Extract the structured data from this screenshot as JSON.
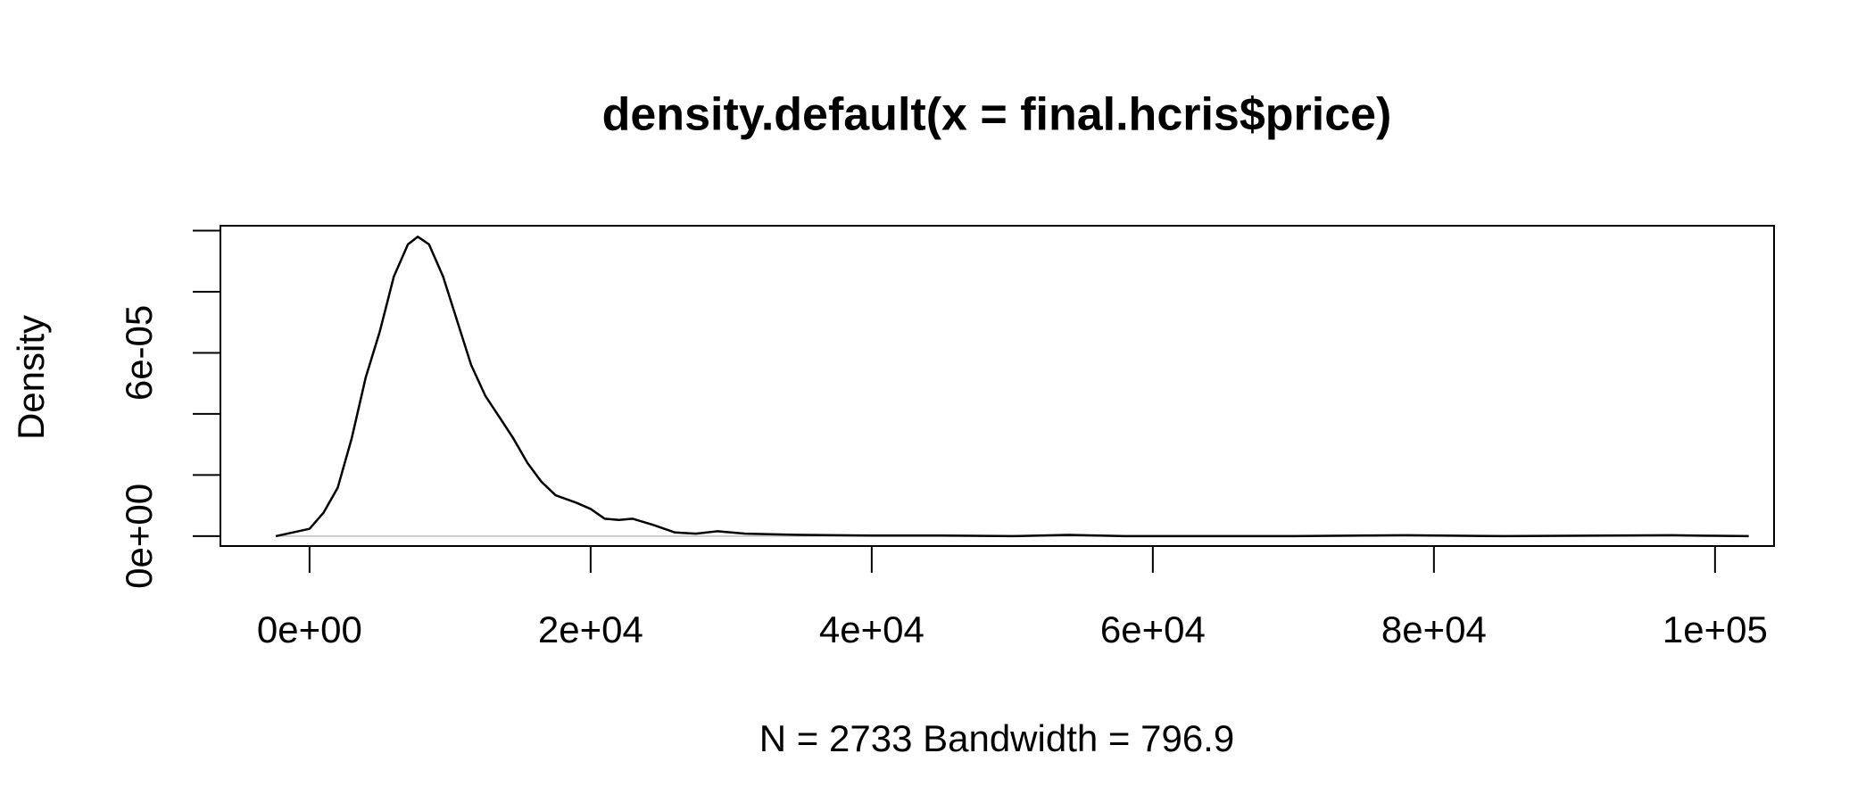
{
  "chart_data": {
    "type": "line",
    "title": "density.default(x = final.hcris$price)",
    "x_label": "N = 2733   Bandwidth = 796.9",
    "y_label": "Density",
    "x": [
      -2400,
      0,
      1000,
      2000,
      3000,
      4000,
      5000,
      6000,
      7000,
      7700,
      8500,
      9500,
      10500,
      11500,
      12500,
      13500,
      14500,
      15500,
      16500,
      17500,
      19000,
      20000,
      21000,
      22000,
      23000,
      24500,
      26000,
      27500,
      29000,
      31000,
      35000,
      40000,
      45000,
      50000,
      54000,
      58000,
      70000,
      78000,
      85000,
      97000,
      100000,
      102400
    ],
    "values": [
      0,
      2.4e-06,
      7.7e-06,
      1.58e-05,
      3.2e-05,
      5.2e-05,
      6.7e-05,
      8.5e-05,
      9.55e-05,
      9.8e-05,
      9.55e-05,
      8.5e-05,
      7.05e-05,
      5.6e-05,
      4.6e-05,
      3.9e-05,
      3.2e-05,
      2.4e-05,
      1.78e-05,
      1.34e-05,
      1.09e-05,
      8.9e-06,
      5.7e-06,
      5.3e-06,
      5.7e-06,
      3.6e-06,
      1.2e-06,
      8e-07,
      1.6e-06,
      8e-07,
      4e-07,
      2e-07,
      2e-07,
      0,
      4e-07,
      0,
      0,
      3e-07,
      0,
      3e-07,
      1e-07,
      0
    ],
    "color": "#000000",
    "zero_line_color": "#bebebe",
    "xlim": [
      -6341,
      104200
    ],
    "xticks": [
      {
        "value": 0,
        "label": "0e+00"
      },
      {
        "value": 20000,
        "label": "2e+04"
      },
      {
        "value": 40000,
        "label": "4e+04"
      },
      {
        "value": 60000,
        "label": "6e+04"
      },
      {
        "value": 80000,
        "label": "8e+04"
      },
      {
        "value": 100000,
        "label": "1e+05"
      }
    ],
    "ylim": [
      -3.24e-06,
      0.0001016
    ],
    "yticks": [
      {
        "value": 0,
        "label": "0e+00"
      },
      {
        "value": 2e-05,
        "label": null
      },
      {
        "value": 4e-05,
        "label": null
      },
      {
        "value": 6e-05,
        "label": "6e-05"
      },
      {
        "value": 8e-05,
        "label": null
      },
      {
        "value": 0.0001,
        "label": null
      }
    ]
  }
}
